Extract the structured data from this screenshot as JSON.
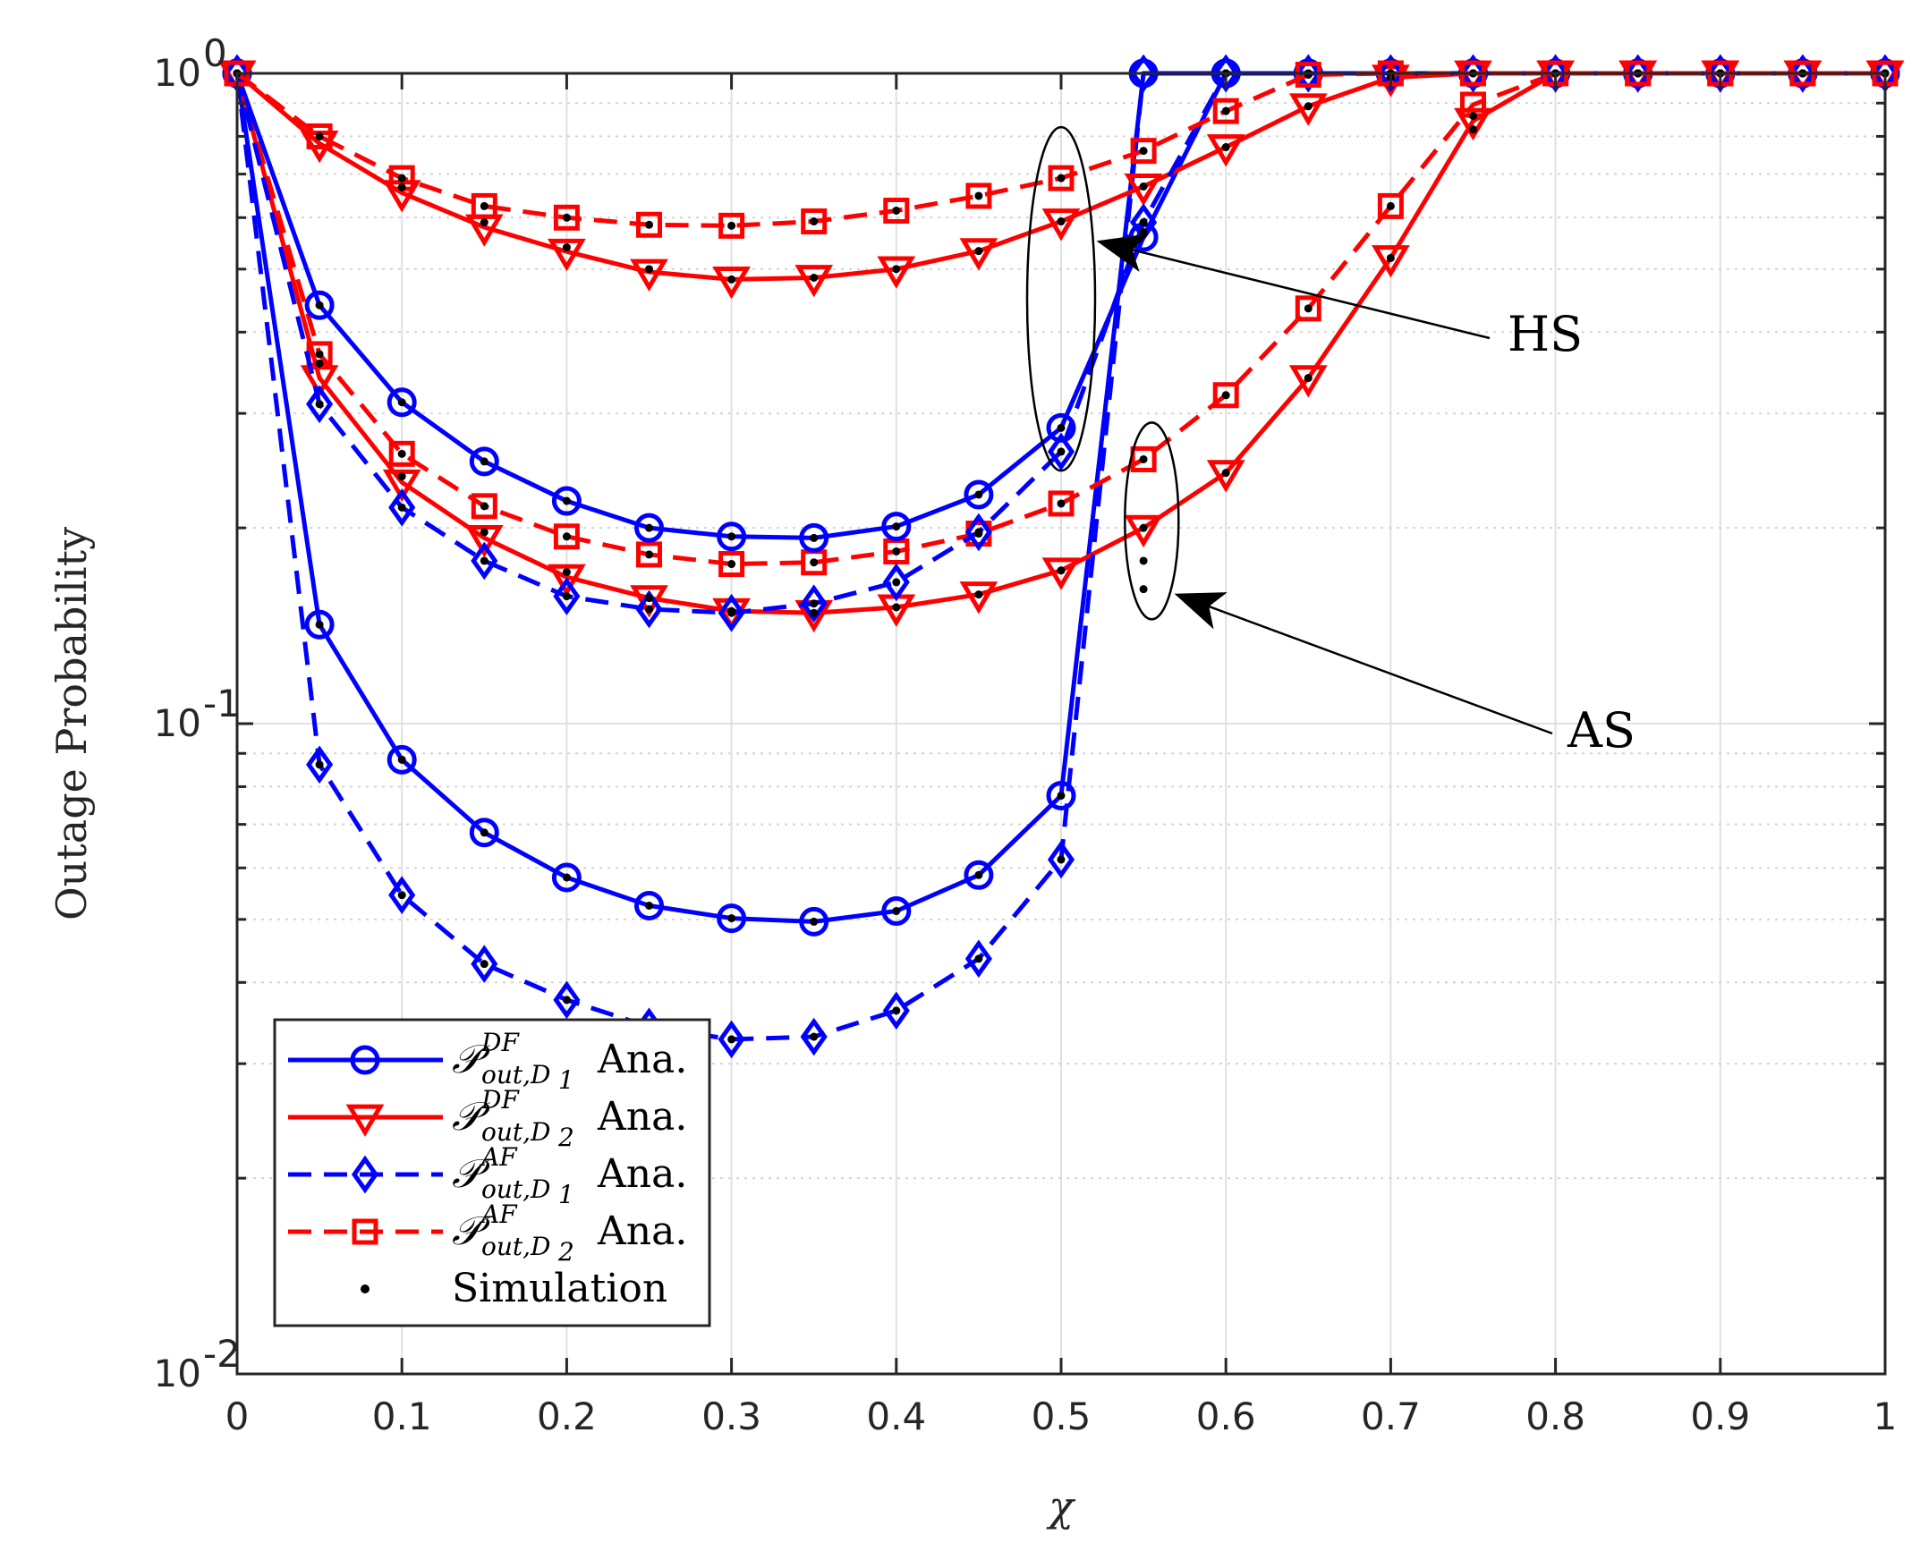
{
  "chart_data": {
    "type": "line",
    "xlabel": "χ",
    "ylabel": "Outage Probability",
    "xscale": "linear",
    "yscale": "log",
    "xlim": [
      0,
      1
    ],
    "ylim": [
      0.01,
      1
    ],
    "grid": true,
    "x_ticks": [
      0,
      0.1,
      0.2,
      0.3,
      0.4,
      0.5,
      0.6,
      0.7,
      0.8,
      0.9,
      1
    ],
    "x_tick_labels": [
      "0",
      "0.1",
      "0.2",
      "0.3",
      "0.4",
      "0.5",
      "0.6",
      "0.7",
      "0.8",
      "0.9",
      "1"
    ],
    "y_ticks": [
      1,
      0.1,
      0.01
    ],
    "y_tick_labels": [
      {
        "base": "10",
        "exp": "0"
      },
      {
        "base": "10",
        "exp": "-1"
      },
      {
        "base": "10",
        "exp": "-2"
      }
    ],
    "x": [
      0,
      0.05,
      0.1,
      0.15,
      0.2,
      0.25,
      0.3,
      0.35,
      0.4,
      0.45,
      0.5,
      0.55,
      0.6,
      0.65,
      0.7,
      0.75,
      0.8,
      0.85,
      0.9,
      0.95,
      1
    ],
    "series": [
      {
        "name": "DF D1",
        "color": "#0000ff",
        "dash": "solid",
        "marker": "circle",
        "values": [
          1,
          0.142,
          0.088,
          0.068,
          0.058,
          0.0525,
          0.0502,
          0.0496,
          0.0515,
          0.0585,
          0.0775,
          1,
          1,
          1,
          1,
          1,
          1,
          1,
          1,
          1,
          1
        ],
        "simulation": [
          1,
          0.142,
          0.088,
          0.068,
          0.058,
          0.0525,
          0.0502,
          0.0496,
          0.0515,
          0.0585,
          0.0775,
          0.178,
          1,
          1,
          1,
          1,
          1,
          1,
          1,
          1,
          1
        ]
      },
      {
        "name": "DF D2",
        "color": "#ff0000",
        "dash": "solid",
        "marker": "triangle",
        "values": [
          1,
          0.34,
          0.235,
          0.193,
          0.168,
          0.156,
          0.149,
          0.148,
          0.151,
          0.158,
          0.172,
          0.2,
          0.243,
          0.34,
          0.52,
          0.845,
          1,
          1,
          1,
          1,
          1
        ],
        "simulation": [
          1,
          0.358,
          0.24,
          0.197,
          0.171,
          0.156,
          0.149,
          0.148,
          0.151,
          0.158,
          0.172,
          0.2,
          0.243,
          0.34,
          0.52,
          0.82,
          1,
          1,
          1,
          1,
          1
        ]
      },
      {
        "name": "AF D1",
        "color": "#0000ff",
        "dash": "dashed",
        "marker": "diamond",
        "values": [
          1,
          0.0865,
          0.0545,
          0.0427,
          0.0376,
          0.0342,
          0.0327,
          0.033,
          0.0362,
          0.0435,
          0.0618,
          1,
          1,
          1,
          1,
          1,
          1,
          1,
          1,
          1,
          1
        ],
        "simulation": [
          1,
          0.0865,
          0.0545,
          0.0427,
          0.0376,
          0.0342,
          0.0327,
          0.033,
          0.0362,
          0.0435,
          0.0618,
          0.161,
          1,
          1,
          1,
          1,
          1,
          1,
          1,
          1,
          1
        ]
      },
      {
        "name": "AF D2",
        "color": "#ff0000",
        "dash": "dashed",
        "marker": "square",
        "values": [
          1,
          0.37,
          0.26,
          0.216,
          0.194,
          0.182,
          0.176,
          0.177,
          0.184,
          0.196,
          0.218,
          0.255,
          0.32,
          0.435,
          0.625,
          0.895,
          1,
          1,
          1,
          1,
          1
        ],
        "simulation": [
          1,
          0.37,
          0.26,
          0.216,
          0.194,
          0.182,
          0.176,
          0.177,
          0.184,
          0.196,
          0.218,
          0.255,
          0.32,
          0.435,
          0.625,
          0.86,
          1,
          1,
          1,
          1,
          1
        ]
      },
      {
        "name": "HS DF D1",
        "color": "#0000ff",
        "dash": "solid",
        "marker": "circle",
        "values": [
          1,
          0.44,
          0.312,
          0.253,
          0.22,
          0.2,
          0.194,
          0.193,
          0.201,
          0.225,
          0.285,
          0.56,
          1,
          1,
          1,
          1,
          1,
          1,
          1,
          1,
          1
        ],
        "simulation": [
          1,
          0.44,
          0.312,
          0.253,
          0.22,
          0.2,
          0.194,
          0.193,
          0.201,
          0.225,
          0.285,
          0.57,
          1,
          1,
          1,
          1,
          1,
          1,
          1,
          1,
          1
        ]
      },
      {
        "name": "HS DF D2",
        "color": "#ff0000",
        "dash": "solid",
        "marker": "triangle",
        "values": [
          1,
          0.78,
          0.655,
          0.58,
          0.532,
          0.495,
          0.482,
          0.485,
          0.5,
          0.533,
          0.592,
          0.67,
          0.77,
          0.89,
          0.985,
          1,
          1,
          1,
          1,
          1,
          1
        ],
        "simulation": [
          1,
          0.8,
          0.668,
          0.59,
          0.54,
          0.5,
          0.482,
          0.485,
          0.5,
          0.533,
          0.592,
          0.67,
          0.77,
          0.89,
          0.985,
          1,
          1,
          1,
          1,
          1,
          1
        ]
      },
      {
        "name": "HS AF D1",
        "color": "#0000ff",
        "dash": "dashed",
        "marker": "diamond",
        "values": [
          1,
          0.31,
          0.215,
          0.178,
          0.157,
          0.15,
          0.148,
          0.153,
          0.165,
          0.197,
          0.262,
          0.59,
          1,
          1,
          1,
          1,
          1,
          1,
          1,
          1,
          1
        ],
        "simulation": [
          1,
          0.31,
          0.215,
          0.178,
          0.157,
          0.15,
          0.148,
          0.153,
          0.165,
          0.197,
          0.262,
          0.59,
          1,
          1,
          1,
          1,
          1,
          1,
          1,
          1,
          1
        ]
      },
      {
        "name": "HS AF D2",
        "color": "#ff0000",
        "dash": "dashed",
        "marker": "square",
        "values": [
          1,
          0.8,
          0.69,
          0.625,
          0.6,
          0.585,
          0.583,
          0.592,
          0.615,
          0.648,
          0.69,
          0.76,
          0.875,
          0.995,
          1,
          1,
          1,
          1,
          1,
          1,
          1
        ],
        "simulation": [
          1,
          0.8,
          0.69,
          0.625,
          0.6,
          0.585,
          0.583,
          0.592,
          0.615,
          0.648,
          0.69,
          0.76,
          0.875,
          0.995,
          1,
          1,
          1,
          1,
          1,
          1,
          1
        ]
      }
    ],
    "annotations": [
      {
        "text": "HS",
        "ellipse_center": [
          0.5,
          0.45
        ],
        "arrow_target": [
          0.52,
          0.55
        ]
      },
      {
        "text": "AS",
        "ellipse_center": [
          0.555,
          0.205
        ],
        "arrow_target": [
          0.565,
          0.16
        ]
      }
    ],
    "legend": {
      "position": "bottom-left",
      "entries": [
        {
          "symbol": "𝒫",
          "sup": "DF",
          "sub_main": "out,D",
          "sub_index": "1",
          "suffix": "Ana.",
          "color": "#0000ff",
          "dash": "solid",
          "marker": "circle"
        },
        {
          "symbol": "𝒫",
          "sup": "DF",
          "sub_main": "out,D",
          "sub_index": "2",
          "suffix": "Ana.",
          "color": "#ff0000",
          "dash": "solid",
          "marker": "triangle"
        },
        {
          "symbol": "𝒫",
          "sup": "AF",
          "sub_main": "out,D",
          "sub_index": "1",
          "suffix": "Ana.",
          "color": "#0000ff",
          "dash": "dashed",
          "marker": "diamond"
        },
        {
          "symbol": "𝒫",
          "sup": "AF",
          "sub_main": "out,D",
          "sub_index": "2",
          "suffix": "Ana.",
          "color": "#ff0000",
          "dash": "dashed",
          "marker": "square"
        }
      ],
      "simulation_label": "Simulation"
    }
  }
}
